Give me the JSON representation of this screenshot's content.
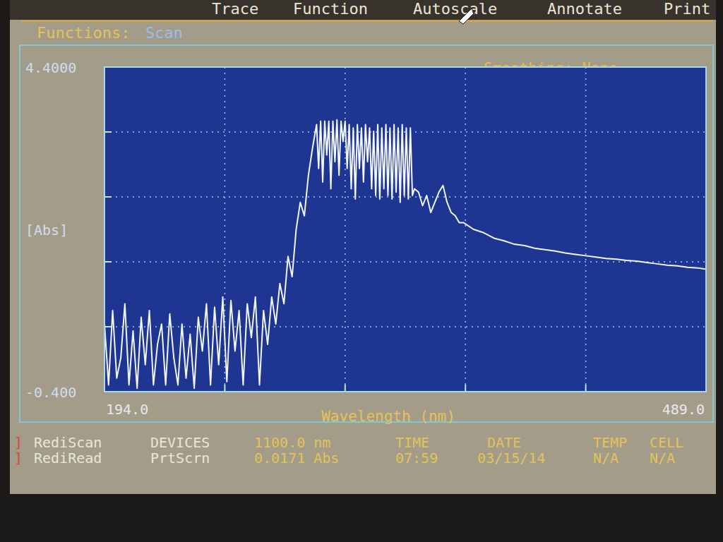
{
  "screen": {
    "menu": [
      "Trace",
      "Function",
      "Autoscale",
      "Annotate",
      "Print"
    ],
    "functions_label": "Functions:",
    "functions_value": "Scan",
    "smoothing": "Smoothing: None",
    "status": {
      "bracket": "]",
      "rows": [
        [
          "RediScan",
          "DEVICES",
          "1100.0 nm",
          "TIME",
          "DATE",
          "TEMP",
          "CELL"
        ],
        [
          "RediRead",
          "PrtScrn",
          "0.0171 Abs",
          "07:59",
          "03/15/14",
          "N/A",
          "N/A"
        ]
      ]
    }
  },
  "chart_data": {
    "type": "line",
    "x_label": "Wavelength (nm)",
    "y_label": "[Abs]",
    "color": "#f2f5ff",
    "grid": true,
    "xlim": [
      194,
      489
    ],
    "ylim": [
      -0.4,
      4.4
    ],
    "xticks": [
      {
        "value": 194,
        "label": "194.0"
      },
      {
        "value": 489,
        "label": "489.0"
      }
    ],
    "yticks": [
      {
        "value": -0.4,
        "label": "-0.400"
      },
      {
        "value": 4.4,
        "label": "4.4000"
      }
    ],
    "x": [
      194,
      196,
      198,
      200,
      202,
      204,
      206,
      208,
      210,
      212,
      214,
      216,
      218,
      220,
      222,
      224,
      226,
      228,
      230,
      232,
      234,
      236,
      238,
      240,
      242,
      244,
      246,
      248,
      250,
      252,
      254,
      256,
      258,
      260,
      262,
      264,
      266,
      268,
      270,
      272,
      274,
      276,
      278,
      280,
      282,
      284,
      286,
      288,
      290,
      292,
      294,
      296,
      298,
      299,
      300,
      301,
      302,
      303,
      304,
      305,
      306,
      307,
      308,
      309,
      310,
      311,
      312,
      313,
      314,
      315,
      316,
      317,
      318,
      319,
      320,
      321,
      322,
      323,
      324,
      325,
      326,
      327,
      328,
      329,
      330,
      331,
      332,
      333,
      334,
      335,
      336,
      337,
      338,
      339,
      340,
      341,
      342,
      343,
      344,
      345,
      346,
      348,
      350,
      352,
      354,
      356,
      358,
      360,
      362,
      364,
      366,
      368,
      370,
      375,
      380,
      385,
      390,
      395,
      400,
      405,
      410,
      415,
      420,
      425,
      430,
      435,
      440,
      445,
      450,
      455,
      460,
      465,
      470,
      475,
      480,
      485,
      489
    ],
    "values": [
      0.6,
      -0.3,
      0.8,
      -0.2,
      0.1,
      0.9,
      -0.3,
      0.5,
      -0.35,
      0.7,
      0.0,
      0.8,
      -0.3,
      0.3,
      0.6,
      -0.3,
      0.75,
      0.1,
      -0.3,
      0.6,
      -0.2,
      0.45,
      -0.35,
      0.7,
      0.2,
      0.9,
      -0.3,
      0.85,
      0.0,
      1.0,
      -0.25,
      0.95,
      0.2,
      0.8,
      -0.3,
      0.9,
      0.4,
      1.0,
      -0.3,
      0.8,
      0.3,
      1.0,
      0.6,
      1.2,
      0.9,
      1.6,
      1.3,
      2.0,
      2.4,
      2.2,
      2.8,
      3.2,
      3.55,
      2.9,
      3.6,
      2.7,
      3.6,
      3.1,
      3.6,
      2.6,
      3.6,
      3.0,
      3.62,
      2.8,
      3.6,
      3.3,
      3.6,
      2.9,
      3.55,
      2.6,
      3.5,
      2.45,
      3.55,
      2.9,
      3.5,
      2.7,
      3.55,
      3.0,
      3.5,
      2.6,
      3.45,
      2.5,
      3.55,
      2.45,
      3.5,
      2.6,
      3.55,
      2.5,
      3.5,
      2.45,
      3.55,
      2.55,
      3.5,
      2.4,
      3.55,
      2.5,
      3.5,
      2.45,
      3.5,
      2.5,
      2.6,
      2.55,
      2.35,
      2.5,
      2.25,
      2.4,
      2.55,
      2.65,
      2.4,
      2.25,
      2.2,
      2.1,
      2.1,
      2.0,
      1.95,
      1.87,
      1.83,
      1.78,
      1.76,
      1.72,
      1.7,
      1.68,
      1.65,
      1.63,
      1.61,
      1.59,
      1.57,
      1.56,
      1.54,
      1.53,
      1.51,
      1.49,
      1.47,
      1.46,
      1.44,
      1.43,
      1.41
    ]
  }
}
